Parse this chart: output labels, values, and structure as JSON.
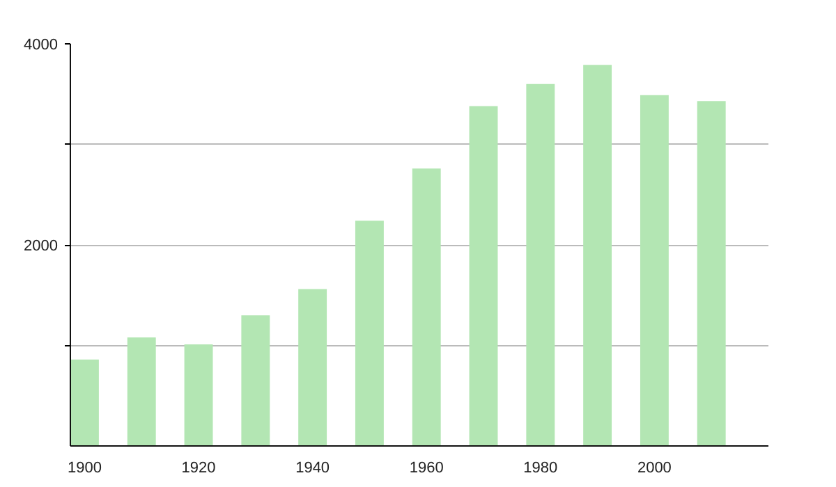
{
  "chart_data": {
    "type": "bar",
    "x": [
      1900,
      1910,
      1920,
      1930,
      1940,
      1950,
      1960,
      1970,
      1980,
      1990,
      2000,
      2010
    ],
    "values": [
      860,
      1080,
      1010,
      1300,
      1560,
      2240,
      2760,
      3380,
      3600,
      3790,
      3490,
      3430
    ],
    "color": "#b3e6b3",
    "xlim": [
      1897.5,
      2020
    ],
    "xticks": [
      1900,
      1920,
      1940,
      1960,
      1980,
      2000
    ],
    "ylim": [
      0,
      4000
    ],
    "yticks": [
      {
        "value": 1000,
        "label": null
      },
      2000,
      {
        "value": 3000,
        "label": null
      },
      4000
    ],
    "grid": "y"
  }
}
